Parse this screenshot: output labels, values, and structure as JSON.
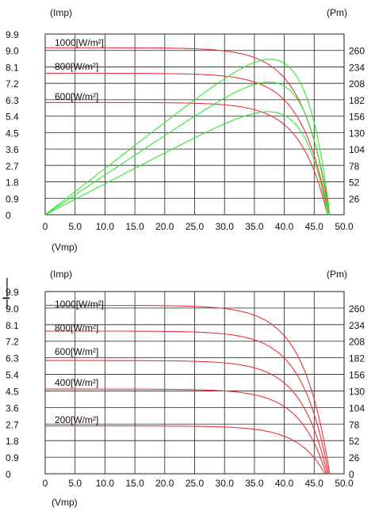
{
  "side_label": "—I——",
  "colors": {
    "iv_curve": "#e8323a",
    "pv_curve": "#2ee82e",
    "grid": "#222222",
    "text": "#111111"
  },
  "chart_data": [
    {
      "type": "line",
      "title": "",
      "xlabel": "(Vmp)",
      "ylabel_left": "(Imp)",
      "ylabel_right": "(Pm)",
      "xlim": [
        0,
        50
      ],
      "ylim_left": [
        0,
        9.9
      ],
      "ylim_right": [
        0,
        286
      ],
      "x_ticks": [
        "0",
        "5.0",
        "10.0",
        "15.0",
        "20.0",
        "25.0",
        "30.0",
        "35.0",
        "40.0",
        "45.0",
        "50.0"
      ],
      "y_ticks_left": [
        "0",
        "0.9",
        "1.8",
        "2.7",
        "3.6",
        "4.5",
        "5.4",
        "6.3",
        "7.2",
        "8.1",
        "9.0",
        "9.9"
      ],
      "y_ticks_right": [
        "26",
        "52",
        "78",
        "104",
        "130",
        "156",
        "182",
        "208",
        "234",
        "260"
      ],
      "grid": true,
      "series": [
        {
          "name": "1000[W/m²]",
          "kind": "current",
          "isc": 9.15,
          "voc": 47.6
        },
        {
          "name": "800[W/m²]",
          "kind": "current",
          "isc": 7.75,
          "voc": 47.4
        },
        {
          "name": "600[W/m²]",
          "kind": "current",
          "isc": 6.15,
          "voc": 47.2
        },
        {
          "name": "1000[W/m²]",
          "kind": "power",
          "pmax": 246,
          "vmp": 38.0,
          "voc": 47.6
        },
        {
          "name": "800[W/m²]",
          "kind": "power",
          "pmax": 210,
          "vmp": 37.5,
          "voc": 47.4
        },
        {
          "name": "600[W/m²]",
          "kind": "power",
          "pmax": 163,
          "vmp": 37.0,
          "voc": 47.2
        }
      ]
    },
    {
      "type": "line",
      "title": "",
      "xlabel": "(Vmp)",
      "ylabel_left": "(Imp)",
      "ylabel_right": "(Pm)",
      "xlim": [
        0,
        50
      ],
      "ylim_left": [
        0,
        9.9
      ],
      "x_ticks": [
        "0",
        "5.0",
        "10.0",
        "15.0",
        "20.0",
        "25.0",
        "30.0",
        "35.0",
        "40.0",
        "45.0",
        "50.0"
      ],
      "y_ticks_left": [
        "0",
        "0.9",
        "1.8",
        "2.7",
        "3.6",
        "4.5",
        "5.4",
        "6.3",
        "7.2",
        "8.1",
        "9.0",
        "9.9"
      ],
      "y_ticks_right": [
        "0",
        "26",
        "52",
        "78",
        "104",
        "130",
        "156",
        "182",
        "208",
        "234",
        "260"
      ],
      "grid": true,
      "series": [
        {
          "name": "1000[W/m²]",
          "kind": "current",
          "isc": 9.15,
          "voc": 47.6
        },
        {
          "name": "800[W/m²]",
          "kind": "current",
          "isc": 7.75,
          "voc": 47.4
        },
        {
          "name": "600[W/m²]",
          "kind": "current",
          "isc": 6.15,
          "voc": 47.2
        },
        {
          "name": "400[W/m²]",
          "kind": "current",
          "isc": 4.6,
          "voc": 47.0
        },
        {
          "name": "200[W/m²]",
          "kind": "current",
          "isc": 2.6,
          "voc": 46.8
        }
      ]
    }
  ]
}
